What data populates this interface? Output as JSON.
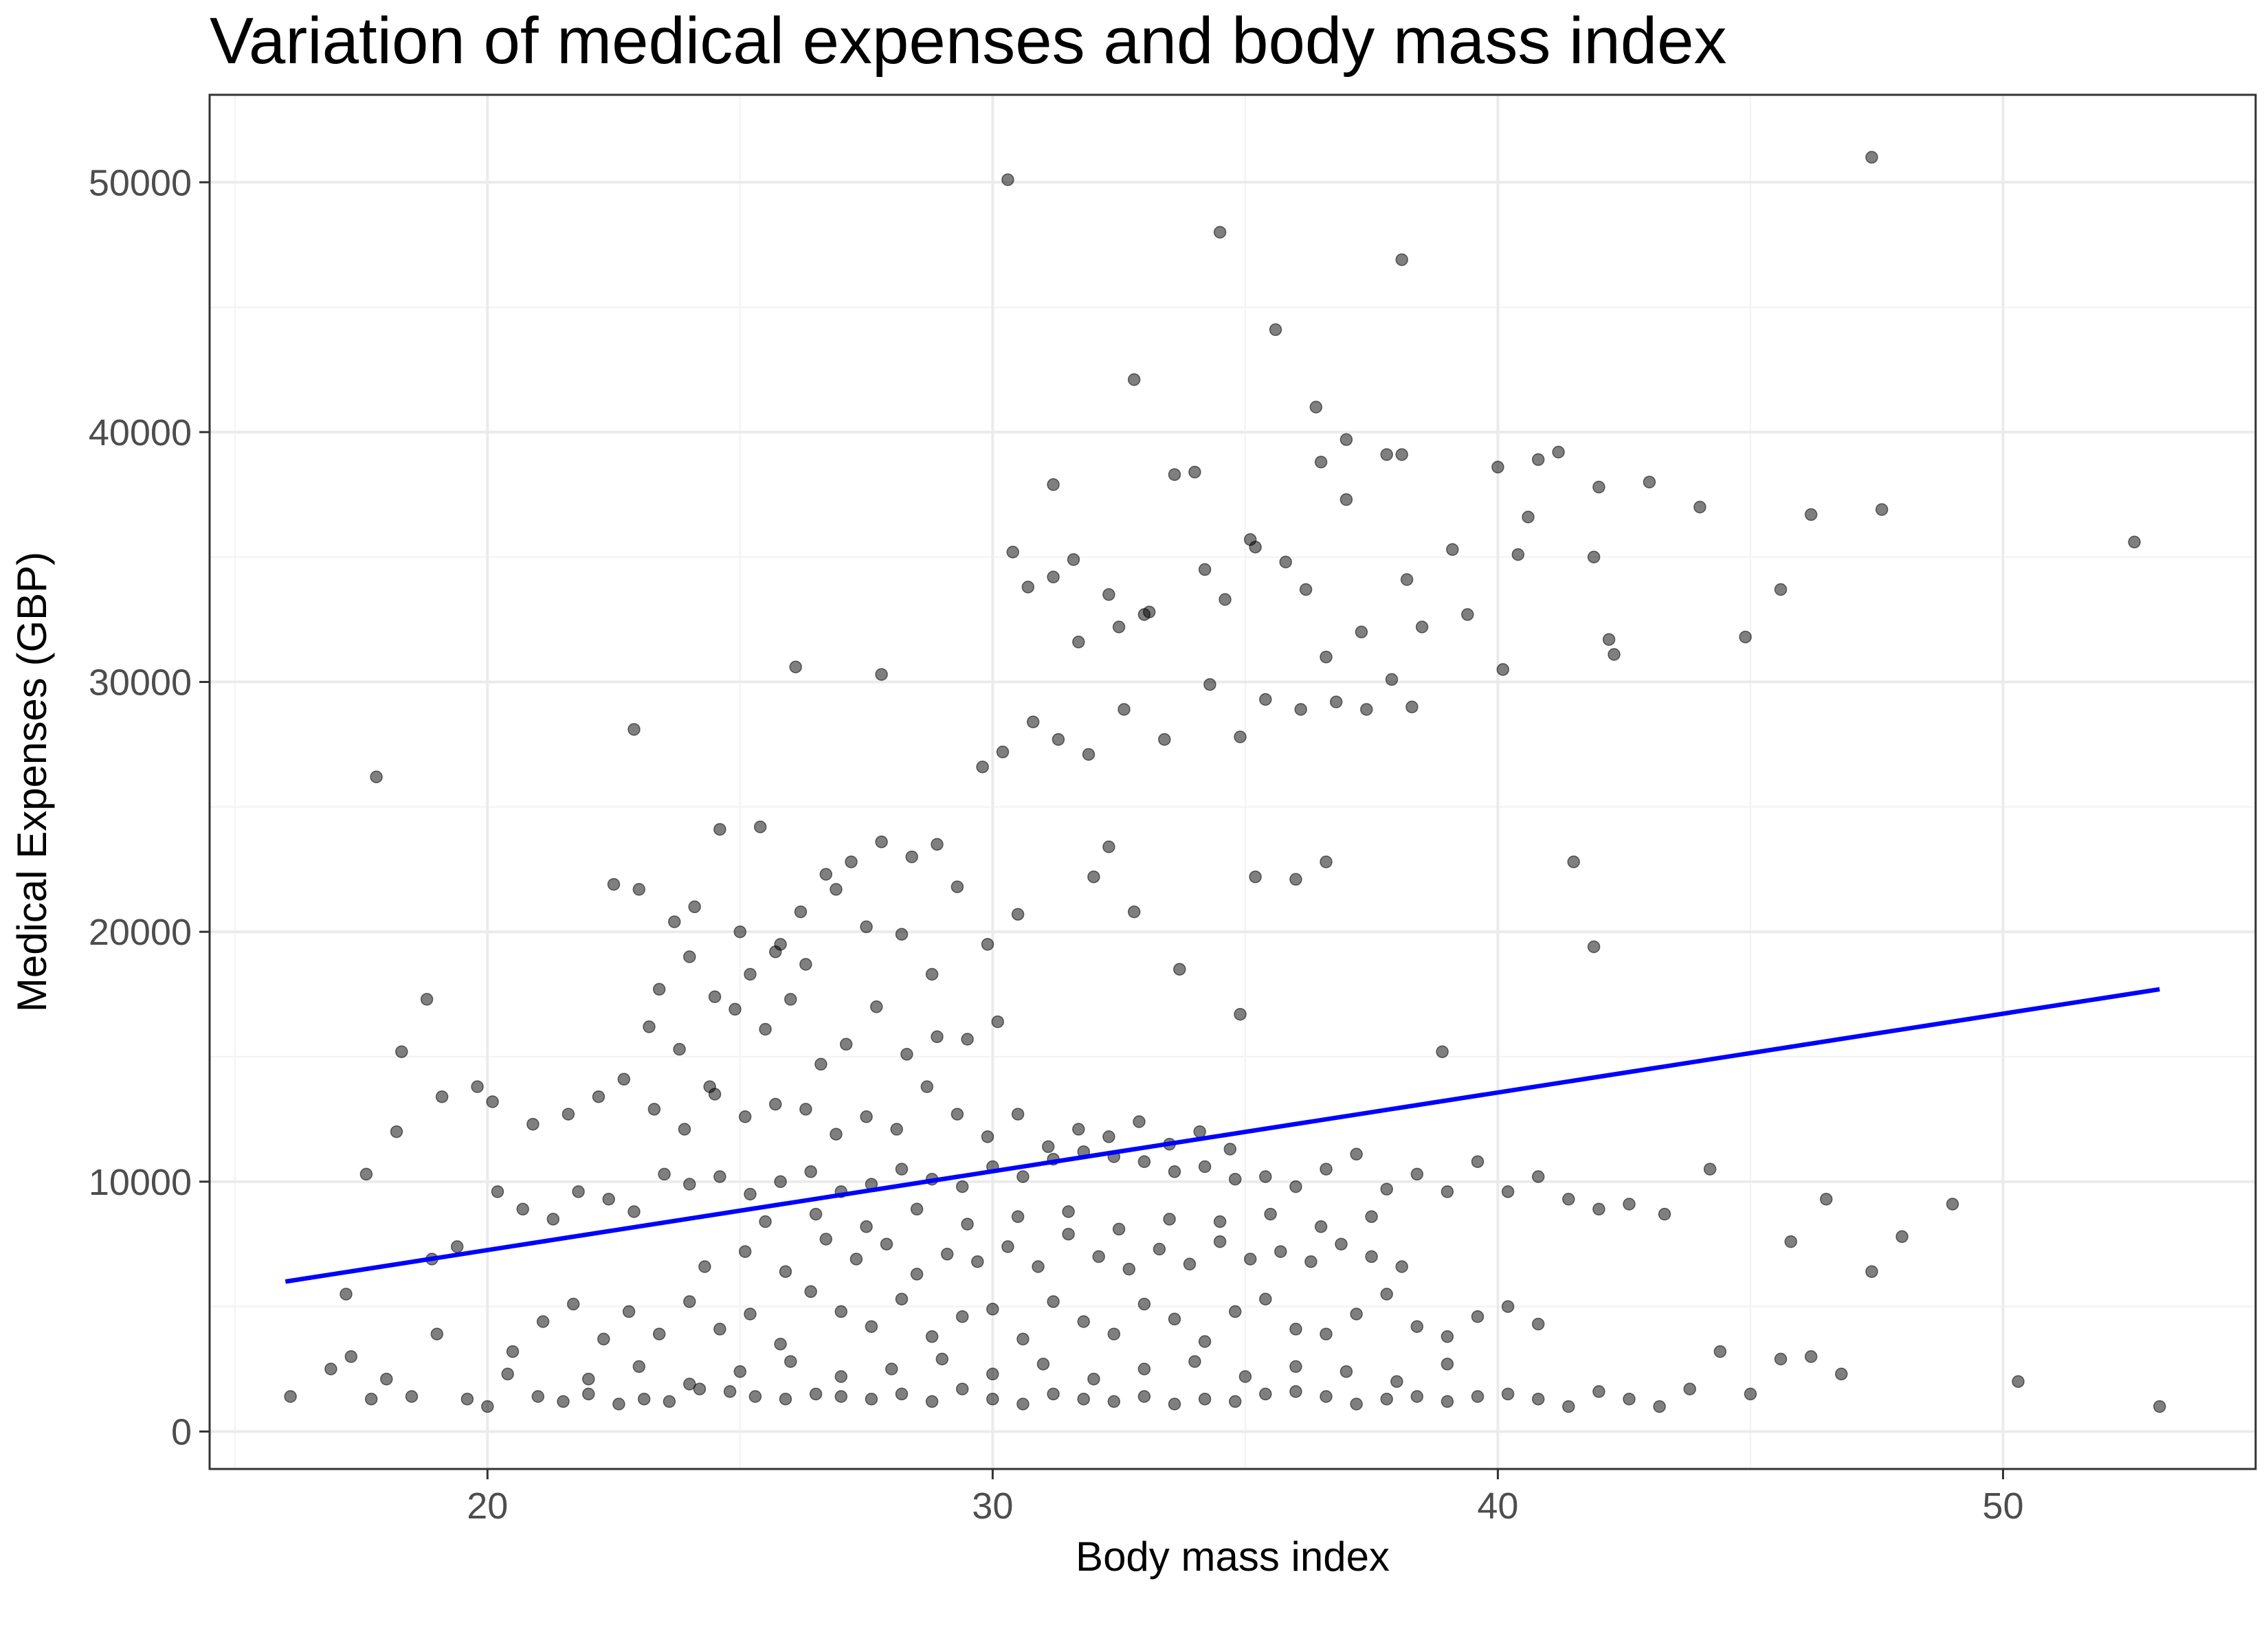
{
  "chart_data": {
    "type": "scatter",
    "title": "Variation of medical expenses and body mass index",
    "xlabel": "Body mass index",
    "ylabel": "Medical Expenses (GBP)",
    "xlim": [
      14.5,
      55
    ],
    "ylim": [
      -1500,
      53500
    ],
    "x_ticks": [
      20,
      30,
      40,
      50
    ],
    "y_ticks": [
      0,
      10000,
      20000,
      30000,
      40000,
      50000
    ],
    "x_tick_labels": [
      "20",
      "30",
      "40",
      "50"
    ],
    "y_tick_labels": [
      "0",
      "10000",
      "20000",
      "30000",
      "40000",
      "50000"
    ],
    "grid": true,
    "legend": "none",
    "point_color": "#000000",
    "point_alpha": 0.5,
    "trend_line": {
      "color": "#0000ff",
      "x": [
        16,
        53.1
      ],
      "y": [
        6000,
        17700
      ]
    },
    "series": [
      {
        "name": "",
        "x": [
          30.3,
          47.4,
          34.5,
          38.1,
          35.6,
          32.8,
          36.4,
          37.0,
          36.5,
          37.0,
          41.2,
          40.8,
          42.0,
          40.0,
          37.8,
          38.1,
          34.0,
          31.2,
          33.6,
          43.0,
          46.2,
          47.6,
          44.0,
          52.6,
          45.6,
          44.9,
          42.3,
          42.2,
          41.9,
          40.4,
          40.6,
          40.1,
          17.8,
          22.9,
          26.1,
          27.8,
          30.4,
          31.6,
          32.3,
          33.1,
          34.2,
          35.1,
          35.8,
          36.2,
          37.3,
          38.2,
          39.4,
          30.7,
          31.2,
          31.7,
          32.5,
          33.0,
          34.6,
          35.2,
          36.8,
          37.9,
          38.5,
          39.1,
          29.8,
          30.2,
          30.8,
          31.3,
          31.9,
          32.6,
          33.4,
          34.3,
          34.9,
          35.4,
          36.1,
          36.6,
          37.4,
          38.3,
          35.2,
          36.0,
          36.6,
          32.0,
          32.3,
          32.8,
          33.7,
          34.9,
          38.9,
          41.5,
          41.9,
          22.5,
          23.0,
          23.7,
          24.1,
          24.6,
          25.0,
          25.4,
          25.8,
          26.3,
          26.7,
          27.2,
          27.8,
          28.4,
          28.9,
          23.4,
          24.0,
          24.5,
          25.2,
          25.7,
          26.2,
          26.9,
          27.5,
          28.2,
          28.8,
          29.3,
          29.9,
          30.5,
          23.2,
          23.8,
          24.4,
          24.9,
          25.5,
          26.0,
          26.6,
          27.1,
          27.7,
          28.3,
          28.9,
          29.5,
          30.1,
          18.3,
          18.8,
          19.1,
          19.8,
          20.1,
          20.9,
          21.6,
          22.2,
          22.7,
          23.3,
          23.9,
          24.5,
          25.1,
          25.7,
          26.3,
          26.9,
          27.5,
          28.1,
          28.7,
          29.3,
          29.9,
          30.5,
          31.1,
          31.7,
          32.3,
          32.9,
          33.5,
          34.1,
          34.7,
          16.1,
          16.9,
          17.3,
          17.7,
          18.0,
          18.5,
          19.0,
          19.6,
          20.0,
          20.4,
          21.0,
          21.5,
          22.0,
          22.6,
          23.1,
          23.6,
          24.2,
          24.8,
          25.3,
          25.9,
          26.5,
          27.0,
          27.6,
          28.2,
          28.8,
          29.4,
          30.0,
          30.6,
          31.2,
          31.8,
          32.4,
          33.0,
          33.6,
          34.2,
          34.8,
          35.4,
          36.0,
          36.6,
          37.2,
          37.8,
          38.4,
          39.0,
          39.6,
          40.2,
          40.8,
          41.4,
          42.0,
          42.6,
          43.2,
          43.8,
          44.4,
          45.0,
          45.6,
          46.2,
          46.8,
          47.4,
          48.0,
          49.0,
          50.3,
          53.1,
          17.2,
          17.6,
          18.2,
          18.9,
          19.4,
          20.2,
          20.7,
          21.3,
          21.8,
          22.4,
          22.9,
          23.5,
          24.0,
          24.6,
          25.2,
          25.8,
          26.4,
          27.0,
          27.6,
          28.2,
          28.8,
          29.4,
          30.0,
          30.6,
          31.2,
          31.8,
          32.4,
          33.0,
          33.6,
          34.2,
          34.8,
          35.4,
          36.0,
          36.6,
          37.2,
          37.8,
          38.4,
          39.0,
          39.6,
          40.2,
          40.8,
          41.4,
          42.0,
          42.6,
          43.3,
          44.2,
          45.8,
          46.5,
          20.5,
          21.1,
          21.7,
          22.3,
          22.8,
          23.4,
          24.0,
          24.6,
          25.2,
          25.8,
          26.4,
          27.0,
          27.6,
          28.2,
          28.8,
          29.4,
          30.0,
          30.6,
          31.2,
          31.8,
          32.4,
          33.0,
          33.6,
          34.2,
          34.8,
          35.4,
          36.0,
          36.6,
          37.2,
          37.8,
          38.4,
          39.0,
          39.6,
          40.2,
          40.8,
          24.3,
          25.1,
          25.9,
          26.7,
          27.3,
          27.9,
          28.5,
          29.1,
          29.7,
          30.3,
          30.9,
          31.5,
          32.1,
          32.7,
          33.3,
          33.9,
          34.5,
          35.1,
          35.7,
          36.3,
          36.9,
          37.5,
          38.1,
          22.0,
          23.0,
          24.0,
          25.0,
          26.0,
          27.0,
          28.0,
          29.0,
          30.0,
          31.0,
          32.0,
          33.0,
          34.0,
          35.0,
          36.0,
          37.0,
          38.0,
          39.0,
          25.5,
          26.5,
          27.5,
          28.5,
          29.5,
          30.5,
          31.5,
          32.5,
          33.5,
          34.5,
          35.5,
          36.5,
          37.5
        ],
        "y": [
          50100,
          51000,
          48000,
          46900,
          44100,
          42100,
          41000,
          39700,
          38800,
          37300,
          39200,
          38900,
          37800,
          38600,
          39100,
          39100,
          38400,
          37900,
          38300,
          38000,
          36700,
          36900,
          37000,
          35600,
          33700,
          31800,
          31100,
          31700,
          35000,
          35100,
          36600,
          30500,
          26200,
          28100,
          30600,
          30300,
          35200,
          34900,
          33500,
          32800,
          34500,
          35700,
          34800,
          33700,
          32000,
          34100,
          32700,
          33800,
          34200,
          31600,
          32200,
          32700,
          33300,
          35400,
          29200,
          30100,
          32200,
          35300,
          26600,
          27200,
          28400,
          27700,
          27100,
          28900,
          27700,
          29900,
          27800,
          29300,
          28900,
          31000,
          28900,
          29000,
          22200,
          22100,
          22800,
          22200,
          23400,
          20800,
          18500,
          16700,
          15200,
          22800,
          19400,
          21900,
          21700,
          20400,
          21000,
          24100,
          20000,
          24200,
          19500,
          18700,
          22300,
          22800,
          23600,
          23000,
          23500,
          17700,
          19000,
          17400,
          18300,
          19200,
          20800,
          21700,
          20200,
          19900,
          18300,
          21800,
          19500,
          20700,
          16200,
          15300,
          13800,
          16900,
          16100,
          17300,
          14700,
          15500,
          17000,
          15100,
          15800,
          15700,
          16400,
          15200,
          17300,
          13400,
          13800,
          13200,
          12300,
          12700,
          13400,
          14100,
          12900,
          12100,
          13500,
          12600,
          13100,
          12900,
          11900,
          12600,
          12100,
          13800,
          12700,
          11800,
          12700,
          11400,
          12100,
          11800,
          12400,
          11500,
          12000,
          11300,
          1400,
          2500,
          3000,
          1300,
          2100,
          1400,
          3900,
          1300,
          1000,
          2300,
          1400,
          1200,
          1500,
          1100,
          1300,
          1200,
          1700,
          1600,
          1400,
          1300,
          1500,
          1400,
          1300,
          1500,
          1200,
          1700,
          1300,
          1100,
          1500,
          1300,
          1200,
          1400,
          1100,
          1300,
          1200,
          1500,
          1600,
          1400,
          1100,
          1300,
          1400,
          1200,
          1400,
          1500,
          1300,
          1000,
          1600,
          1300,
          1000,
          1700,
          3200,
          1500,
          2900,
          3000,
          2300,
          6400,
          7800,
          9100,
          2000,
          1000,
          5500,
          10300,
          12000,
          6900,
          7400,
          9600,
          8900,
          8500,
          9600,
          9300,
          8800,
          10300,
          9900,
          10200,
          9500,
          10000,
          10400,
          9600,
          9900,
          10500,
          10100,
          9800,
          10600,
          10200,
          10900,
          11200,
          11000,
          10800,
          10400,
          10600,
          10100,
          10200,
          9800,
          10500,
          11100,
          9700,
          10300,
          9600,
          10800,
          9600,
          10200,
          9300,
          8900,
          9100,
          8700,
          10500,
          7600,
          9300,
          3200,
          4400,
          5100,
          3700,
          4800,
          3900,
          5200,
          4100,
          4700,
          3500,
          5600,
          4800,
          4200,
          5300,
          3800,
          4600,
          4900,
          3700,
          5200,
          4400,
          3900,
          5100,
          4500,
          3600,
          4800,
          5300,
          4100,
          3900,
          4700,
          5500,
          4200,
          3800,
          4600,
          5000,
          4300,
          6600,
          7200,
          6400,
          7700,
          6900,
          7500,
          6300,
          7100,
          6800,
          7400,
          6600,
          7900,
          7000,
          6500,
          7300,
          6700,
          7600,
          6900,
          7200,
          6800,
          7500,
          7000,
          6600,
          2100,
          2600,
          1900,
          2400,
          2800,
          2200,
          2500,
          2900,
          2300,
          2700,
          2100,
          2500,
          2800,
          2200,
          2600,
          2400,
          2000,
          2700,
          8400,
          8700,
          8200,
          8900,
          8300,
          8600,
          8800,
          8100,
          8500,
          8400,
          8700,
          8200,
          8600
        ]
      }
    ]
  }
}
